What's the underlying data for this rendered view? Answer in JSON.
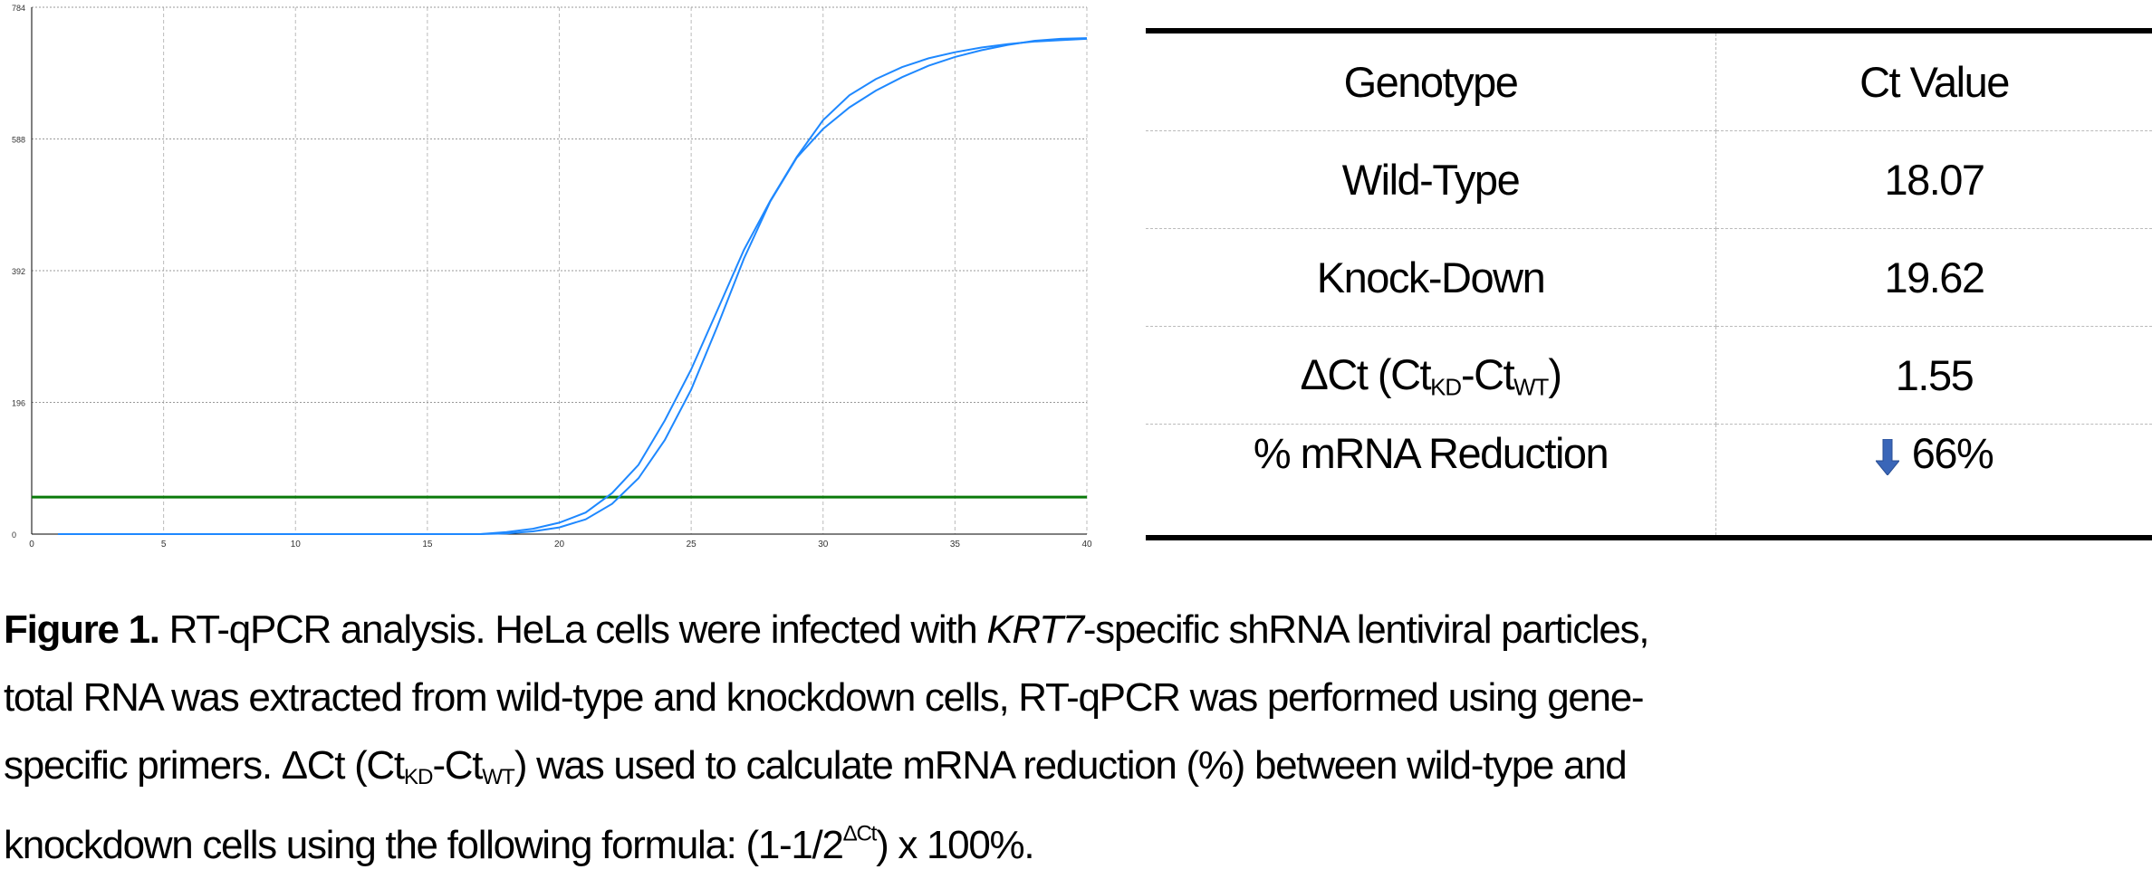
{
  "chart_data": {
    "type": "line",
    "title": "",
    "xlabel": "",
    "ylabel": "",
    "xlim": [
      0,
      40
    ],
    "ylim": [
      0,
      784
    ],
    "x_ticks": [
      "0",
      "5",
      "10",
      "15",
      "20",
      "25",
      "30",
      "35",
      "40"
    ],
    "y_ticks": [
      "0",
      "196",
      "392",
      "588",
      "784"
    ],
    "grid": true,
    "x": [
      1,
      2,
      3,
      4,
      5,
      6,
      7,
      8,
      9,
      10,
      11,
      12,
      13,
      14,
      15,
      16,
      17,
      18,
      19,
      20,
      21,
      22,
      23,
      24,
      25,
      26,
      27,
      28,
      29,
      30,
      31,
      32,
      33,
      34,
      35,
      36,
      37,
      38,
      39,
      40
    ],
    "series": [
      {
        "color": "#1e88ff",
        "values": [
          0,
          0,
          0,
          0,
          0,
          0,
          0,
          0,
          0,
          0,
          0,
          0,
          0,
          0,
          0,
          0,
          0,
          3,
          8,
          17,
          32,
          61,
          103,
          169,
          245,
          334,
          423,
          496,
          561,
          616,
          653,
          677,
          695,
          708,
          717,
          724,
          729,
          733,
          735,
          737
        ]
      },
      {
        "color": "#1e88ff",
        "values": [
          0,
          0,
          0,
          0,
          0,
          0,
          0,
          0,
          0,
          0,
          0,
          0,
          0,
          0,
          0,
          0,
          0,
          1,
          4,
          10,
          22,
          45,
          83,
          140,
          215,
          310,
          410,
          495,
          560,
          603,
          635,
          660,
          680,
          697,
          710,
          720,
          728,
          734,
          737,
          738
        ]
      }
    ],
    "threshold": {
      "value": 55,
      "color": "#0a7a0a"
    }
  },
  "table": {
    "headers": [
      "Genotype",
      "Ct Value"
    ],
    "rows": [
      {
        "label": "Wild-Type",
        "value": "18.07"
      },
      {
        "label": "Knock-Down",
        "value": "19.62"
      },
      {
        "label_main": "ΔCt (Ct",
        "label_sub1": "KD",
        "label_mid": "-Ct",
        "label_sub2": "WT",
        "label_end": ")",
        "value": "1.55"
      },
      {
        "label": "% mRNA Reduction",
        "value": "66%",
        "icon": "down-arrow-icon",
        "icon_color": "#3a66b8"
      }
    ]
  },
  "caption": {
    "bold": "Figure 1.",
    "l1_a": " RT-qPCR analysis. HeLa cells were infected with ",
    "l1_italic": "KRT7",
    "l1_b": "-specific shRNA lentiviral particles,",
    "l2": "total RNA was extracted from wild-type and knockdown cells, RT-qPCR was performed using gene-",
    "l3_a": "specific primers. ΔCt (Ct",
    "l3_sub1": "KD",
    "l3_b": "-Ct",
    "l3_sub2": "WT",
    "l3_c": ") was used to calculate mRNA reduction (%) between wild-type and",
    "l4_a": "knockdown cells using the following formula: (1-1/2",
    "l4_sup": "ΔCt",
    "l4_b": ") x 100%."
  }
}
